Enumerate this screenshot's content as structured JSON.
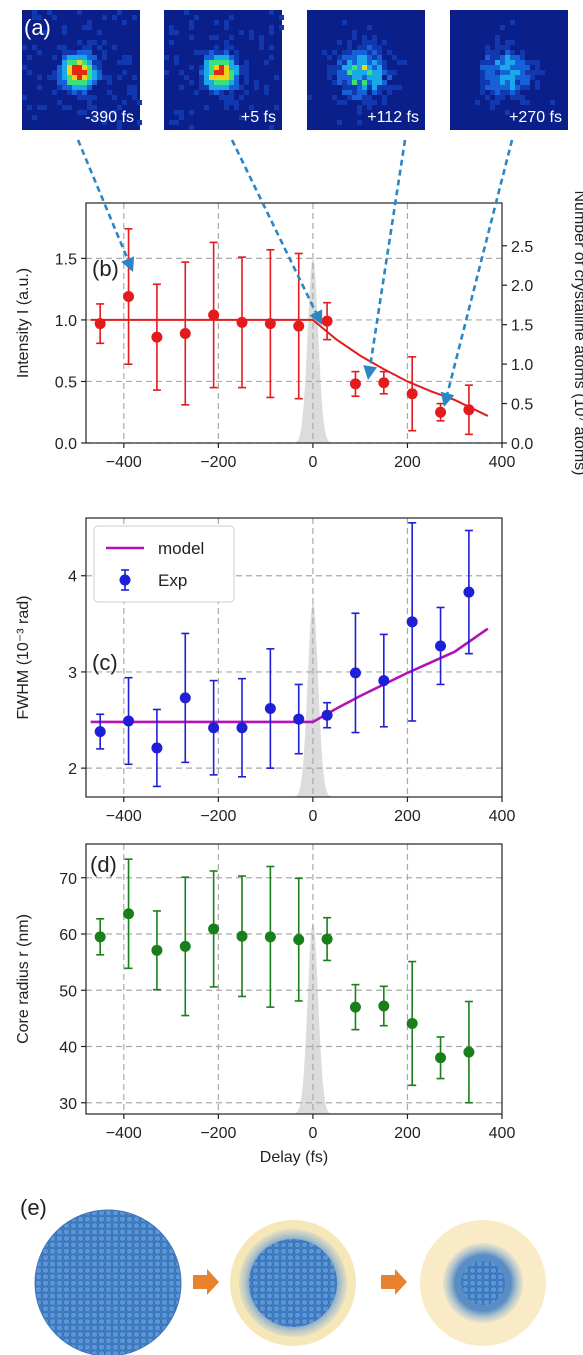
{
  "panel_labels": {
    "a": "(a)",
    "b": "(b)",
    "c": "(c)",
    "d": "(d)",
    "e": "(e)"
  },
  "colors": {
    "red": "#e41a1c",
    "blue": "#1f1fd6",
    "magenta": "#b312b8",
    "green": "#1a7f1a",
    "arrow": "#2b86c5",
    "pulse": "#d9d9d9",
    "grid": "#aaaaaa",
    "sphere": "#4a86c8",
    "halo": "#f6e7b9",
    "orange": "#e8822c"
  },
  "images": [
    {
      "label": "-390 fs",
      "intensity": 1.0
    },
    {
      "label": "+5 fs",
      "intensity": 0.9
    },
    {
      "label": "+112 fs",
      "intensity": 0.45
    },
    {
      "label": "+270 fs",
      "intensity": 0.3
    }
  ],
  "chart_data": [
    {
      "type": "scatter",
      "panel": "b",
      "ylabel": "Intensity I (a.u.)",
      "ylabel_right": "Number of crystalline atoms (10⁷ atoms)",
      "xlim": [
        -480,
        400
      ],
      "ylim": [
        0,
        1.95
      ],
      "xticks": [
        -400,
        -200,
        0,
        200,
        400
      ],
      "yticks": [
        0.0,
        0.5,
        1.0,
        1.5
      ],
      "ytick_labels": [
        "0.0",
        "0.5",
        "1.0",
        "1.5"
      ],
      "yticks_right": [
        0.0,
        0.5,
        1.0,
        1.5,
        2.0,
        2.5
      ],
      "right_scale": 1.56,
      "grid": true,
      "series": [
        {
          "kind": "points",
          "x": [
            -450,
            -390,
            -330,
            -270,
            -210,
            -150,
            -90,
            -30,
            30,
            90,
            150,
            210,
            270,
            330
          ],
          "y": [
            0.97,
            1.19,
            0.86,
            0.89,
            1.04,
            0.98,
            0.97,
            0.95,
            0.99,
            0.48,
            0.49,
            0.4,
            0.25,
            0.27
          ],
          "err": [
            0.16,
            0.55,
            0.43,
            0.58,
            0.59,
            0.53,
            0.6,
            0.59,
            0.15,
            0.1,
            0.09,
            0.3,
            0.07,
            0.2
          ]
        },
        {
          "kind": "line",
          "x": [
            -470,
            -400,
            -300,
            -200,
            -100,
            0,
            50,
            100,
            150,
            200,
            250,
            300,
            370
          ],
          "y": [
            1.0,
            1.0,
            1.0,
            1.0,
            1.0,
            1.0,
            0.84,
            0.71,
            0.6,
            0.5,
            0.42,
            0.35,
            0.22
          ]
        }
      ]
    },
    {
      "type": "scatter",
      "panel": "c",
      "ylabel": "FWHM (10⁻³ rad)",
      "xlim": [
        -480,
        400
      ],
      "ylim": [
        1.7,
        4.6
      ],
      "xticks": [
        -400,
        -200,
        0,
        200,
        400
      ],
      "yticks": [
        2,
        3,
        4
      ],
      "ytick_labels": [
        "2",
        "3",
        "4"
      ],
      "grid": true,
      "legend": [
        "model",
        "Exp"
      ],
      "legend_position": "top-left",
      "series": [
        {
          "name": "Exp",
          "kind": "points",
          "x": [
            -450,
            -390,
            -330,
            -270,
            -210,
            -150,
            -90,
            -30,
            30,
            90,
            150,
            210,
            270,
            330
          ],
          "y": [
            2.38,
            2.49,
            2.21,
            2.73,
            2.42,
            2.42,
            2.62,
            2.51,
            2.55,
            2.99,
            2.91,
            3.52,
            3.27,
            3.83
          ],
          "err": [
            0.18,
            0.45,
            0.4,
            0.67,
            0.49,
            0.51,
            0.62,
            0.36,
            0.13,
            0.62,
            0.48,
            1.03,
            0.4,
            0.64
          ]
        },
        {
          "name": "model",
          "kind": "line",
          "x": [
            -470,
            -300,
            -100,
            0,
            50,
            100,
            150,
            200,
            250,
            300,
            370
          ],
          "y": [
            2.48,
            2.48,
            2.48,
            2.48,
            2.62,
            2.75,
            2.87,
            2.99,
            3.1,
            3.21,
            3.45
          ]
        }
      ]
    },
    {
      "type": "scatter",
      "panel": "d",
      "ylabel": "Core radius r (nm)",
      "xlabel": "Delay (fs)",
      "xlim": [
        -480,
        400
      ],
      "ylim": [
        28,
        76
      ],
      "xticks": [
        -400,
        -200,
        0,
        200,
        400
      ],
      "yticks": [
        30,
        40,
        50,
        60,
        70
      ],
      "ytick_labels": [
        "30",
        "40",
        "50",
        "60",
        "70"
      ],
      "grid": true,
      "series": [
        {
          "kind": "points",
          "x": [
            -450,
            -390,
            -330,
            -270,
            -210,
            -150,
            -90,
            -30,
            30,
            90,
            150,
            210,
            270,
            330
          ],
          "y": [
            59.5,
            63.6,
            57.1,
            57.8,
            60.9,
            59.6,
            59.5,
            59.0,
            59.1,
            47.0,
            47.2,
            44.1,
            38.0,
            39.0
          ],
          "err": [
            3.2,
            9.7,
            7.0,
            12.3,
            10.3,
            10.7,
            12.5,
            10.9,
            3.8,
            4.0,
            3.5,
            11.0,
            3.7,
            9.0
          ]
        }
      ]
    }
  ]
}
